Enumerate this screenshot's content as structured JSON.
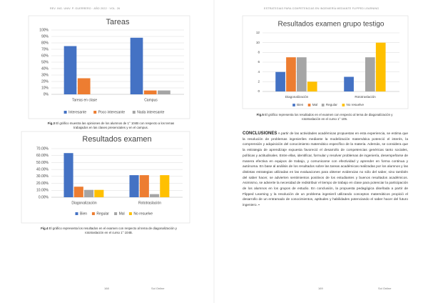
{
  "header": {
    "left": "REV. ING. UNIV. P. GUERRERO · AÑO 2022 · VOL. 26",
    "right": "ESTRATEGIAS PARA COMPETENCIAS EN INGENIERÍA MEDIANTE FLIPPED LEARNING"
  },
  "figures": [
    {
      "chart": {
        "type": "bar",
        "title": "Tareas",
        "categories": [
          "Tareas en clase",
          "Campus"
        ],
        "series": [
          {
            "name": "Interesante",
            "color": "#4472c4",
            "values": [
              75,
              88
            ]
          },
          {
            "name": "Poco interesante",
            "color": "#ed7d31",
            "values": [
              25,
              6
            ]
          },
          {
            "name": "Nada interesante",
            "color": "#a5a5a5",
            "values": [
              0,
              6
            ]
          }
        ],
        "ylim": [
          0,
          100
        ],
        "yticks": [
          {
            "value": 0,
            "label": "0%"
          },
          {
            "value": 10,
            "label": "10%"
          },
          {
            "value": 20,
            "label": "20%"
          },
          {
            "value": 30,
            "label": "30%"
          },
          {
            "value": 40,
            "label": "40%"
          },
          {
            "value": 50,
            "label": "50%"
          },
          {
            "value": 60,
            "label": "60%"
          },
          {
            "value": 70,
            "label": "70%"
          },
          {
            "value": 80,
            "label": "80%"
          },
          {
            "value": 90,
            "label": "90%"
          },
          {
            "value": 100,
            "label": "100%"
          }
        ],
        "grid": true
      },
      "caption": {
        "label": "Fig.3",
        "text": "El gráfico muestra las opiniones de los alumnos de 1° 104B con respecto a los temas trabajados en las clases presenciales y en el campus."
      }
    },
    {
      "chart": {
        "type": "bar",
        "title": "Resultados examen",
        "categories": [
          "Diagonalización",
          "Rototraslación"
        ],
        "series": [
          {
            "name": "Bien",
            "color": "#4472c4",
            "values": [
              63.6,
              31.8
            ]
          },
          {
            "name": "Regular",
            "color": "#ed7d31",
            "values": [
              15.2,
              31.8
            ]
          },
          {
            "name": "Mal",
            "color": "#a5a5a5",
            "values": [
              10.6,
              4.5
            ]
          },
          {
            "name": "No resuelve",
            "color": "#ffc000",
            "values": [
              10.6,
              31.8
            ]
          }
        ],
        "ylim": [
          0,
          70
        ],
        "yticks": [
          {
            "value": 0,
            "label": "0.00%"
          },
          {
            "value": 10,
            "label": "10.00%"
          },
          {
            "value": 20,
            "label": "20.00%"
          },
          {
            "value": 30,
            "label": "30.00%"
          },
          {
            "value": 40,
            "label": "40.00%"
          },
          {
            "value": 50,
            "label": "50.00%"
          },
          {
            "value": 60,
            "label": "60.00%"
          },
          {
            "value": 70,
            "label": "70.00%"
          }
        ],
        "grid": true
      },
      "caption": {
        "label": "Fig.4",
        "text": "El gráfico representa los resultados en el examen con respecto al tema de diagonalización y rototraslación en el curso 1° 104B."
      }
    },
    {
      "chart": {
        "type": "bar",
        "title": "Resultados examen grupo testigo",
        "categories": [
          "Diagonalización",
          "Rototraslación"
        ],
        "series": [
          {
            "name": "Bien",
            "color": "#4472c4",
            "values": [
              4,
              3
            ]
          },
          {
            "name": "Mal",
            "color": "#ed7d31",
            "values": [
              7,
              0
            ]
          },
          {
            "name": "Regular",
            "color": "#a5a5a5",
            "values": [
              7,
              7
            ]
          },
          {
            "name": "No resuelve",
            "color": "#ffc000",
            "values": [
              2,
              10
            ]
          }
        ],
        "ylim": [
          0,
          12
        ],
        "yticks": [
          0,
          2,
          4,
          6,
          8,
          10,
          12
        ],
        "grid": true
      },
      "caption": {
        "label": "Fig.5",
        "text": "El gráfico representa los resultados en el examen con respecto al tema de diagonalización y rototraslación en el curso 1° 105."
      }
    }
  ],
  "conclusions": {
    "heading": "CONCLUSIONES",
    "text": "A partir de las actividades académicas propuestas en esta experiencia, se estima que la resolución de problemas ingenieriles mediante la modelización matemática potenció el interés, la comprensión y adquisición del conocimiento matemático específico de la materia. Además, se considera que la estrategia de aprendizaje expuesta favoreció el desarrollo de competencias genéricas tanto sociales, políticas y actitudinales. Entre ellas, identificar, formular y resolver problemas de ingeniería, desempeñarse de manera efectiva en equipos de trabajo, y comunicarse con efectividad y aprender en forma continua y autónoma. En base al análisis de los resultados sobre las tareas académicas realizadas por los alumnos y las distintas estrategias utilizadas en las evaluaciones para obtener evidencias no sólo del saber, sino también del saber hacer, se advierten sentimientos positivos de los estudiantes y buenos resultados académicos. Asimismo, se advierte la necesidad de redistribuir el tiempo de trabajo en clase para potenciar la participación de los alumnos en los grupos de estudio. En conclusión, la propuesta pedagógica diseñada a partir de Flipped Learning y la resolución de un problema ingenieril utilizando conceptos matemáticos propició el desarrollo de un entramado de conocimientos, aptitudes y habilidades potenciando el saber hacer del futuro ingeniero. ▪"
  },
  "footer": {
    "left_page": "168",
    "left_mark": "Sol Online",
    "right_page": "169",
    "right_mark": "Sol Online"
  }
}
